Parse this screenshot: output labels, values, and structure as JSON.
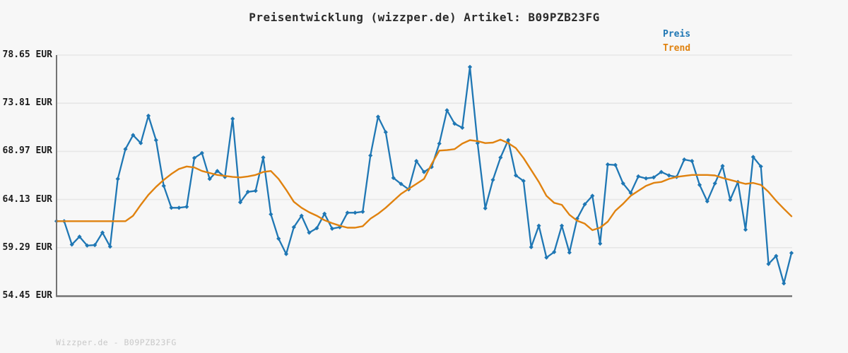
{
  "title": "Preisentwicklung (wizzper.de) Artikel: B09PZB23FG",
  "legend": {
    "preis": "Preis",
    "trend": "Trend"
  },
  "watermark": "Wizzper.de - B09PZB23FG",
  "colors": {
    "preis": "#1f77b4",
    "trend": "#e0820f",
    "axis": "#747474",
    "grid": "#e7e7e7",
    "background": "#f7f7f7",
    "title_text": "#2b2b2b",
    "tick_text": "#1c1c1c",
    "watermark_text": "#c8c8c8"
  },
  "chart_data": {
    "type": "line",
    "title": "Preisentwicklung (wizzper.de) Artikel: B09PZB23FG",
    "currency_unit": "EUR",
    "ylim": [
      54.45,
      78.65
    ],
    "yticks": [
      {
        "value": 78.65,
        "label": "78.65 EUR"
      },
      {
        "value": 73.81,
        "label": "73.81 EUR"
      },
      {
        "value": 68.97,
        "label": "68.97 EUR"
      },
      {
        "value": 64.13,
        "label": "64.13 EUR"
      },
      {
        "value": 59.29,
        "label": "59.29 EUR"
      },
      {
        "value": 54.45,
        "label": "54.45 EUR"
      }
    ],
    "x_tick_labels": [],
    "grid": "horizontal",
    "legend_position": "top-right",
    "series": [
      {
        "name": "Preis",
        "color_key": "preis",
        "marker": "diamond",
        "values": [
          61.95,
          61.95,
          59.6,
          60.4,
          59.5,
          59.55,
          60.8,
          59.4,
          66.2,
          69.2,
          70.6,
          69.8,
          72.55,
          70.1,
          65.5,
          63.3,
          63.3,
          63.4,
          68.3,
          68.8,
          66.2,
          67.0,
          66.4,
          72.25,
          63.85,
          64.9,
          65.0,
          68.35,
          62.65,
          60.2,
          58.65,
          61.35,
          62.5,
          60.8,
          61.25,
          62.7,
          61.2,
          61.35,
          62.8,
          62.8,
          62.9,
          68.55,
          72.45,
          70.9,
          66.3,
          65.7,
          65.15,
          68.0,
          66.9,
          67.4,
          69.75,
          73.1,
          71.75,
          71.35,
          77.45,
          69.8,
          63.25,
          66.1,
          68.35,
          70.1,
          66.55,
          66.0,
          59.35,
          61.5,
          58.3,
          58.85,
          61.5,
          58.8,
          62.2,
          63.65,
          64.5,
          59.7,
          67.65,
          67.6,
          65.75,
          64.8,
          66.45,
          66.25,
          66.35,
          66.9,
          66.55,
          66.4,
          68.15,
          68.0,
          65.6,
          63.95,
          65.75,
          67.5,
          64.1,
          65.9,
          61.1,
          68.4,
          67.45,
          57.65,
          58.45,
          55.7,
          58.75
        ]
      },
      {
        "name": "Trend",
        "color_key": "trend",
        "marker": "none",
        "values": [
          61.95,
          61.95,
          61.95,
          61.95,
          61.95,
          61.95,
          61.95,
          61.95,
          61.95,
          61.95,
          62.5,
          63.6,
          64.6,
          65.4,
          66.1,
          66.7,
          67.2,
          67.45,
          67.35,
          67.0,
          66.8,
          66.6,
          66.5,
          66.4,
          66.35,
          66.45,
          66.6,
          66.9,
          67.0,
          66.2,
          65.1,
          63.9,
          63.3,
          62.85,
          62.5,
          62.05,
          61.75,
          61.5,
          61.3,
          61.3,
          61.45,
          62.2,
          62.7,
          63.3,
          64.0,
          64.7,
          65.2,
          65.7,
          66.2,
          67.7,
          69.05,
          69.1,
          69.2,
          69.75,
          70.1,
          70.0,
          69.8,
          69.85,
          70.15,
          69.8,
          69.3,
          68.3,
          67.1,
          65.9,
          64.5,
          63.8,
          63.6,
          62.6,
          62.0,
          61.7,
          61.05,
          61.3,
          61.9,
          63.0,
          63.7,
          64.5,
          65.0,
          65.5,
          65.8,
          65.9,
          66.2,
          66.4,
          66.5,
          66.6,
          66.6,
          66.6,
          66.55,
          66.3,
          66.1,
          65.9,
          65.7,
          65.8,
          65.6,
          64.9,
          64.0,
          63.2,
          62.45
        ]
      }
    ]
  }
}
